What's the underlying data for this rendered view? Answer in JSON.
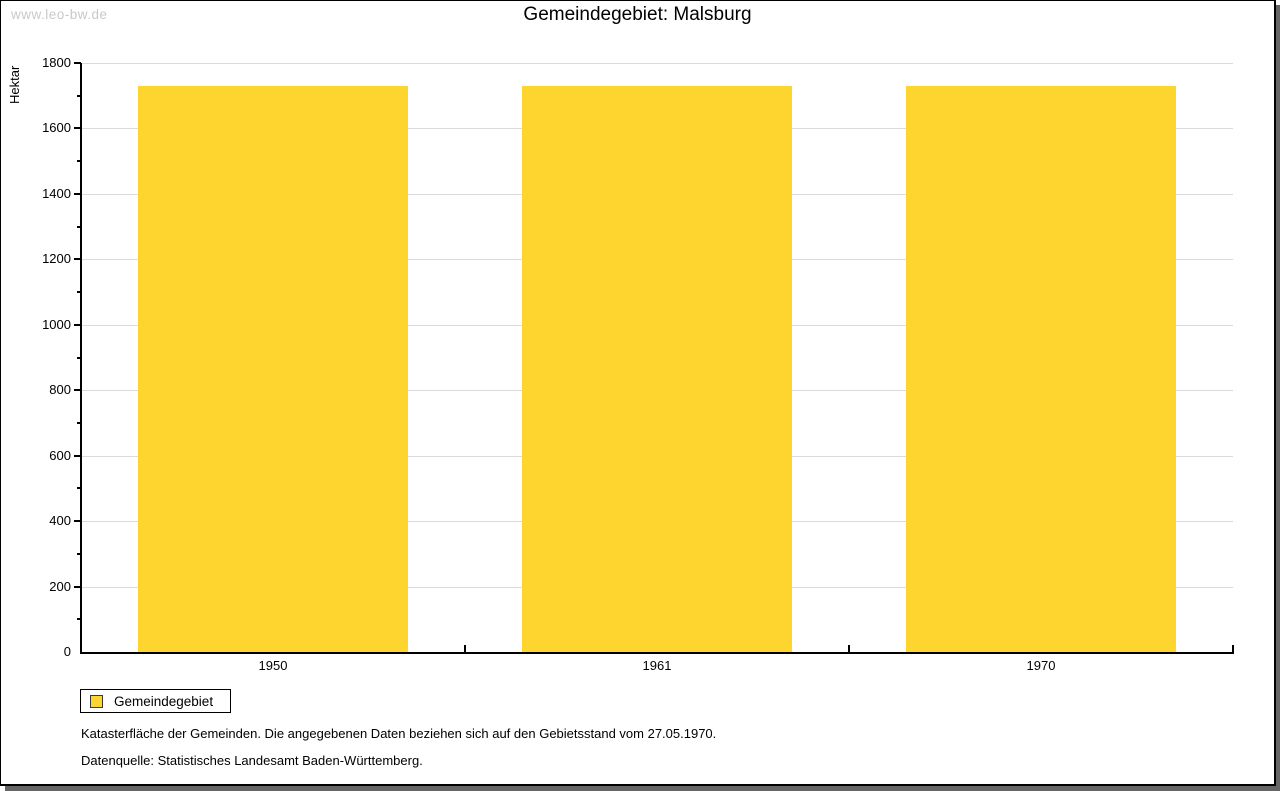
{
  "watermark": "www.leo-bw.de",
  "header": {
    "title": "Gemeindegebiet: Malsburg"
  },
  "chart_data": {
    "type": "bar",
    "title": "Gemeindegebiet: Malsburg",
    "categories": [
      "1950",
      "1961",
      "1970"
    ],
    "series": [
      {
        "name": "Gemeindegebiet",
        "values": [
          1731,
          1731,
          1731
        ]
      }
    ],
    "xlabel": "",
    "ylabel": "Hektar",
    "ylim": [
      0,
      1800
    ],
    "ytick_step": 200,
    "yminor_step": 100,
    "grid": true,
    "legend_position": "bottom-left",
    "bar_color": "#FDD52E"
  },
  "legend": {
    "label": "Gemeindegebiet",
    "swatch_color": "#FDD52E"
  },
  "footnotes": [
    "Katasterfläche der Gemeinden. Die angegebenen Daten beziehen sich auf den Gebietsstand vom 27.05.1970.",
    "Datenquelle: Statistisches Landesamt Baden-Württemberg."
  ],
  "colors": {
    "bar": "#FDD52E",
    "grid": "#DADADA",
    "axis": "#000000",
    "text": "#000000",
    "watermark": "#C9C9C9",
    "frame_shadow": "#666666"
  }
}
